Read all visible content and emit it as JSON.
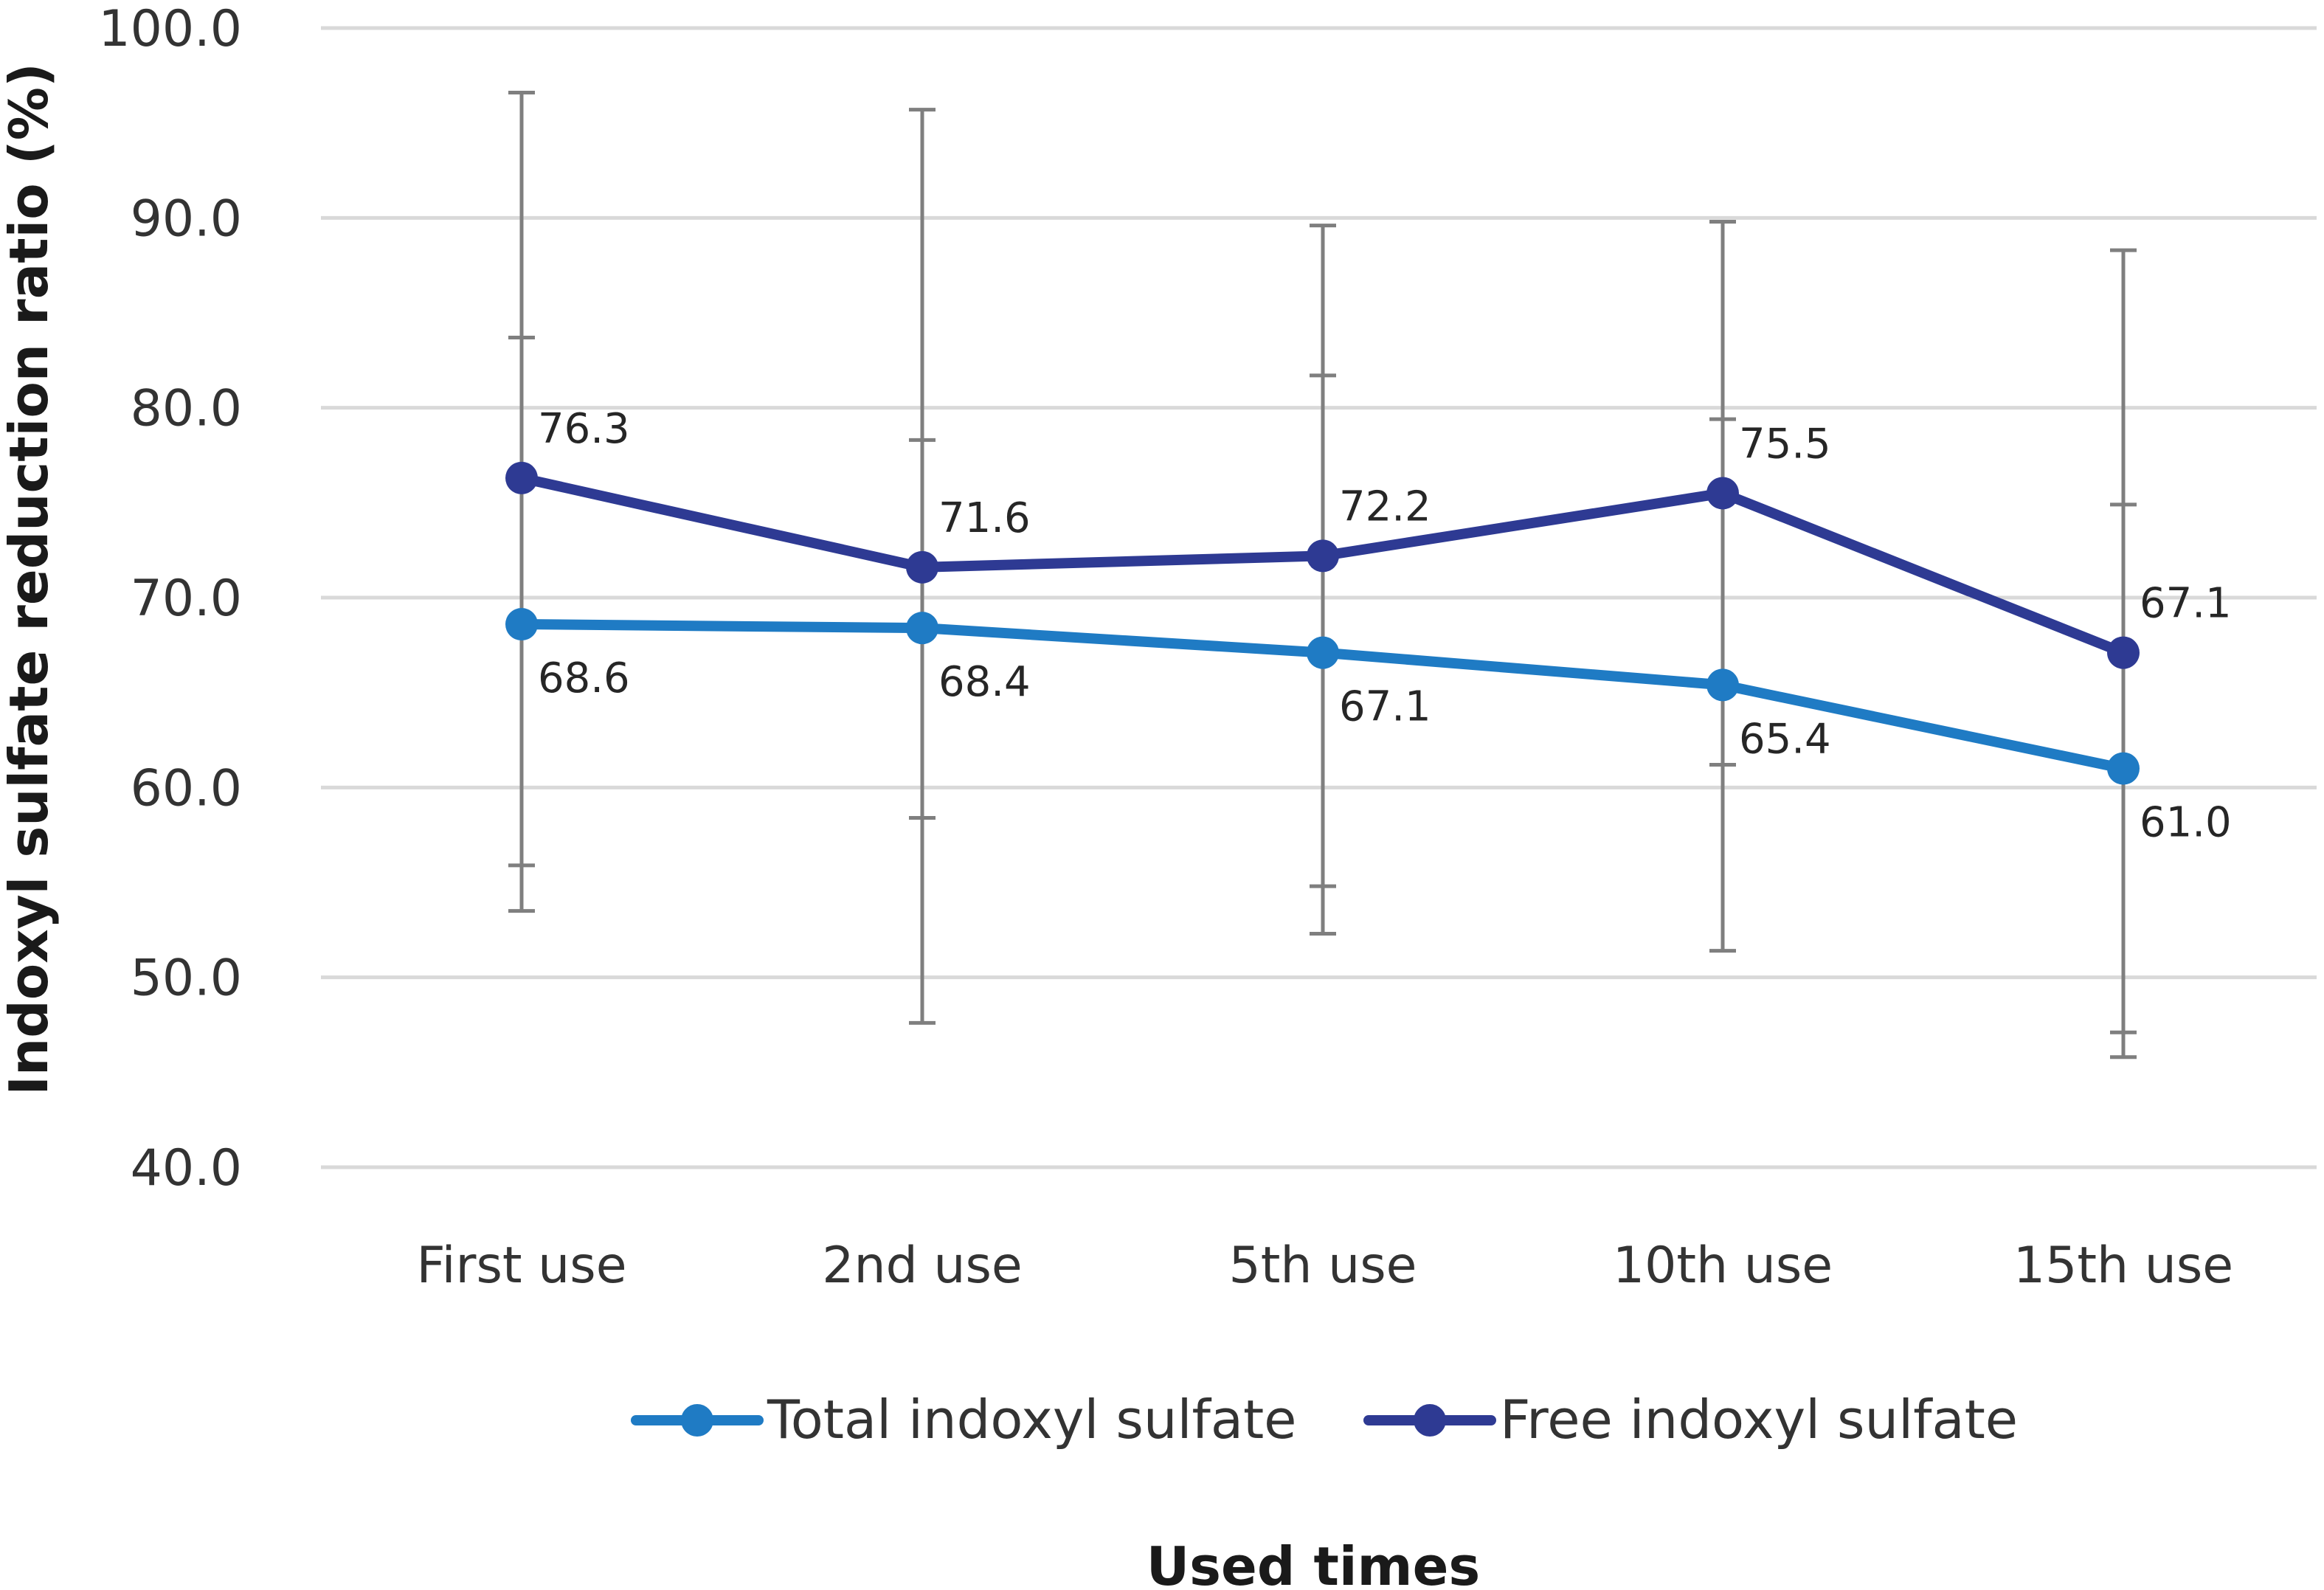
{
  "chart_data": {
    "type": "line",
    "title": "",
    "xlabel": "Used times",
    "ylabel": "Indoxyl sulfate reduction ratio (%)",
    "ylim": [
      40.0,
      100.0
    ],
    "yticks": [
      "40.0",
      "50.0",
      "60.0",
      "70.0",
      "80.0",
      "90.0",
      "100.0"
    ],
    "ytick_values": [
      40,
      50,
      60,
      70,
      80,
      90,
      100
    ],
    "grid": true,
    "legend_position": "bottom",
    "categories": [
      "First use",
      "2nd use",
      "5th use",
      "10th use",
      "15th use"
    ],
    "series": [
      {
        "name": "Total indoxyl sulfate",
        "color": "#1f7bc4",
        "values": [
          68.6,
          68.4,
          67.1,
          65.4,
          61.0
        ],
        "labels": [
          "68.6",
          "68.4",
          "67.1",
          "65.4",
          "61.0"
        ],
        "label_position": "below",
        "error_low": [
          55.9,
          58.4,
          54.8,
          51.4,
          45.8
        ],
        "error_high": [
          83.7,
          78.3,
          81.7,
          79.4,
          74.9
        ]
      },
      {
        "name": "Free indoxyl sulfate",
        "color": "#2e3a93",
        "values": [
          76.3,
          71.6,
          72.2,
          75.5,
          67.1
        ],
        "labels": [
          "76.3",
          "71.6",
          "72.2",
          "75.5",
          "67.1"
        ],
        "label_position": "above",
        "error_low": [
          53.5,
          47.6,
          52.3,
          61.2,
          47.1
        ],
        "error_high": [
          96.6,
          95.7,
          89.6,
          89.8,
          88.3
        ]
      }
    ]
  }
}
